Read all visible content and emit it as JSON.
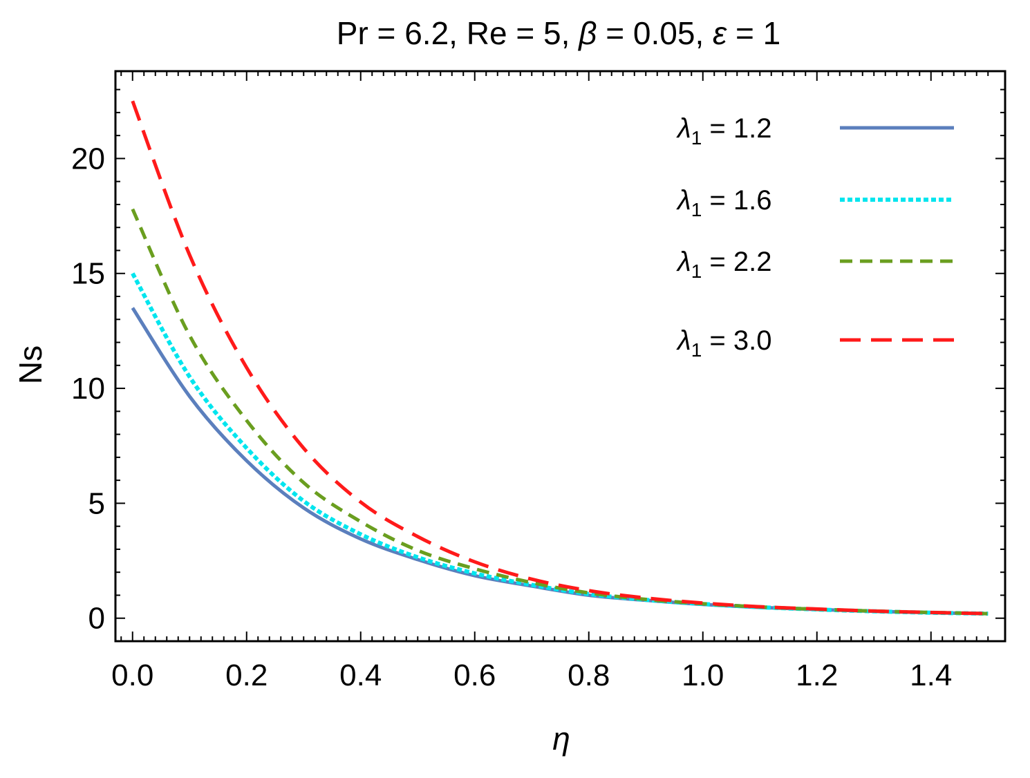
{
  "chart_data": {
    "type": "line",
    "title": "Pr = 6.2, Re = 5, β = 0.05, ε = 1",
    "xlabel": "η",
    "ylabel": "Ns",
    "xlim": [
      -0.03,
      1.53
    ],
    "ylim": [
      -1,
      23.8
    ],
    "x_ticks": [
      0.0,
      0.2,
      0.4,
      0.6,
      0.8,
      1.0,
      1.2,
      1.4
    ],
    "x_tick_labels": [
      "0.0",
      "0.2",
      "0.4",
      "0.6",
      "0.8",
      "1.0",
      "1.2",
      "1.4"
    ],
    "y_ticks": [
      0,
      5,
      10,
      15,
      20
    ],
    "y_tick_labels": [
      "0",
      "5",
      "10",
      "15",
      "20"
    ],
    "legend_position": "top-right",
    "x": [
      0.0,
      0.1,
      0.2,
      0.3,
      0.4,
      0.5,
      0.6,
      0.7,
      0.8,
      0.9,
      1.0,
      1.1,
      1.2,
      1.3,
      1.4,
      1.5
    ],
    "series": [
      {
        "name": "λ1 = 1.2",
        "symbol": "λ",
        "subscript": "1",
        "value_text": " = 1.2",
        "color": "#5b7fbd",
        "style": "solid",
        "values": [
          13.5,
          9.65,
          6.85,
          4.8,
          3.45,
          2.55,
          1.85,
          1.4,
          1.0,
          0.78,
          0.6,
          0.47,
          0.38,
          0.3,
          0.24,
          0.2
        ]
      },
      {
        "name": "λ1 = 1.6",
        "symbol": "λ",
        "subscript": "1",
        "value_text": " = 1.6",
        "color": "#00e5ee",
        "style": "dotted",
        "values": [
          15.0,
          10.5,
          7.4,
          5.1,
          3.65,
          2.65,
          1.95,
          1.45,
          1.05,
          0.8,
          0.62,
          0.48,
          0.38,
          0.3,
          0.24,
          0.2
        ]
      },
      {
        "name": "λ1 = 2.2",
        "symbol": "λ",
        "subscript": "1",
        "value_text": " = 2.2",
        "color": "#6a9e1f",
        "style": "dashed",
        "values": [
          17.8,
          12.3,
          8.6,
          5.9,
          4.2,
          2.95,
          2.15,
          1.55,
          1.1,
          0.82,
          0.63,
          0.49,
          0.39,
          0.31,
          0.25,
          0.2
        ]
      },
      {
        "name": "λ1 = 3.0",
        "symbol": "λ",
        "subscript": "1",
        "value_text": " = 3.0",
        "color": "#ff1a1a",
        "style": "longdash",
        "values": [
          22.5,
          15.8,
          10.9,
          7.4,
          5.05,
          3.55,
          2.45,
          1.7,
          1.2,
          0.88,
          0.66,
          0.5,
          0.4,
          0.31,
          0.25,
          0.2
        ]
      }
    ]
  }
}
